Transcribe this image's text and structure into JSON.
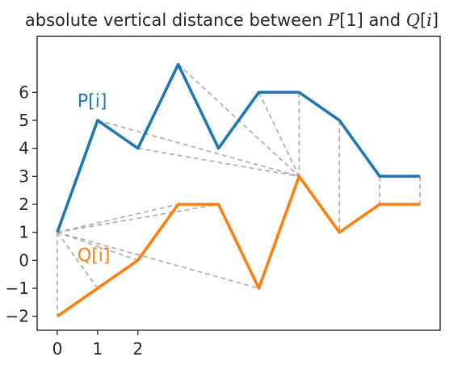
{
  "chart_data": {
    "type": "line",
    "title": {
      "prefix": "absolute vertical distance between ",
      "p_sym": "P",
      "p_index": "[1]",
      "middle": " and ",
      "q_sym": "Q",
      "q_index_open": "[",
      "q_index_var": "i",
      "q_index_close": "]"
    },
    "xlabel": "",
    "ylabel": "",
    "xlim": [
      -0.5,
      9.5
    ],
    "ylim": [
      -2.5,
      8.0
    ],
    "xticks": [
      0,
      1,
      2
    ],
    "yticks": [
      -2,
      -1,
      0,
      1,
      2,
      3,
      4,
      5,
      6
    ],
    "grid": false,
    "series": [
      {
        "name": "P[i]",
        "color": "#1f77b4",
        "x": [
          0,
          1,
          2,
          3,
          4,
          5,
          6,
          7,
          8,
          9
        ],
        "y": [
          1,
          5,
          4,
          7,
          4,
          6,
          6,
          5,
          3,
          3
        ],
        "label_position": {
          "x": 0.5,
          "y": 5.7
        }
      },
      {
        "name": "Q[i]",
        "color": "#ff7f0e",
        "x": [
          0,
          1,
          2,
          3,
          4,
          5,
          6,
          7,
          8,
          9
        ],
        "y": [
          -2,
          -1,
          0,
          2,
          2,
          -1,
          3,
          1,
          2,
          2
        ],
        "label_position": {
          "x": 0.5,
          "y": 0.2
        }
      }
    ],
    "connector_lines": {
      "color": "#aaaaaa",
      "style": "dashed",
      "segments": [
        [
          [
            0,
            1
          ],
          [
            0,
            -2
          ]
        ],
        [
          [
            0,
            1
          ],
          [
            1,
            -1
          ]
        ],
        [
          [
            0,
            1
          ],
          [
            2,
            0
          ]
        ],
        [
          [
            0,
            1
          ],
          [
            3,
            2
          ]
        ],
        [
          [
            0,
            1
          ],
          [
            4,
            2
          ]
        ],
        [
          [
            0,
            1
          ],
          [
            5,
            -1
          ]
        ],
        [
          [
            1,
            5
          ],
          [
            6,
            3
          ]
        ],
        [
          [
            2,
            4
          ],
          [
            6,
            3
          ]
        ],
        [
          [
            3,
            7
          ],
          [
            6,
            3
          ]
        ],
        [
          [
            5,
            6
          ],
          [
            6,
            3
          ]
        ],
        [
          [
            6,
            6
          ],
          [
            6,
            3
          ]
        ],
        [
          [
            7,
            5
          ],
          [
            7,
            1
          ]
        ],
        [
          [
            8,
            3
          ],
          [
            8,
            2
          ]
        ],
        [
          [
            9,
            3
          ],
          [
            9,
            2
          ]
        ]
      ]
    }
  }
}
